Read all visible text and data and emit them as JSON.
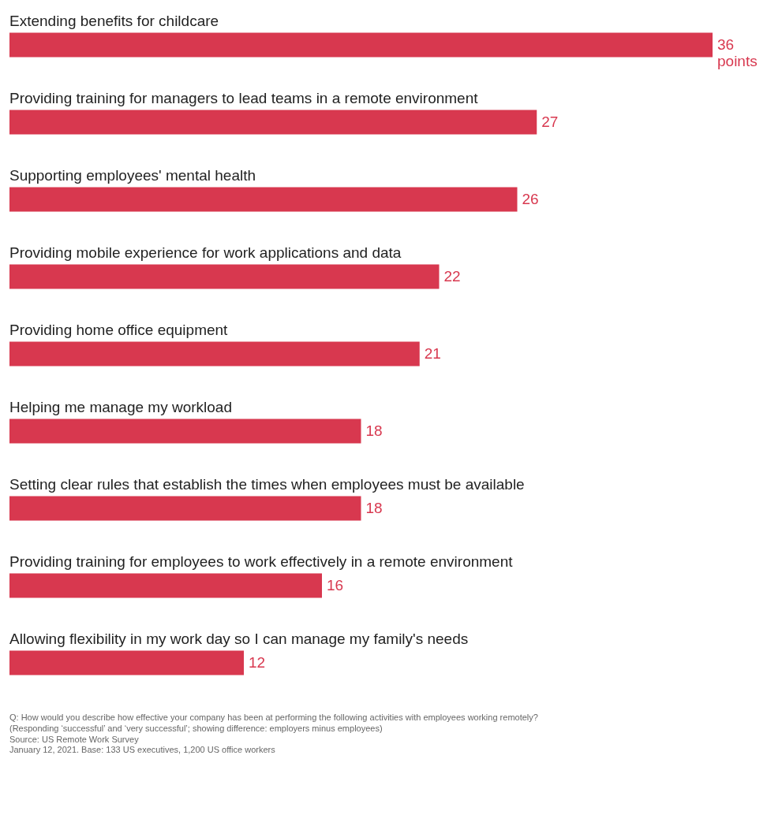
{
  "chart_data": {
    "type": "bar",
    "orientation": "horizontal",
    "color": "#d8384f",
    "categories": [
      "Extending benefits for childcare",
      "Providing training for managers to lead teams in a remote environment",
      "Supporting employees' mental health",
      "Providing mobile experience for work applications and data",
      "Providing home office equipment",
      "Helping me manage my workload",
      "Setting clear rules that establish the times when employees must be available",
      "Providing training for employees to work effectively in a remote environment",
      "Allowing flexibility in my work day so I can manage my family's needs"
    ],
    "values": [
      36,
      27,
      26,
      22,
      21,
      18,
      18,
      16,
      12
    ],
    "value_labels": [
      "36 points",
      "27",
      "26",
      "22",
      "21",
      "18",
      "18",
      "16",
      "12"
    ],
    "annotations": [
      "Q: How would you describe how effective your company has been at performing the following activities with employees working remotely?",
      "(Responding ‘successful’ and ‘very successful’; showing difference: employers minus employees)",
      "Source: US Remote Work Survey",
      "January 12, 2021. Base: 133 US executives, 1,200 US office workers"
    ]
  }
}
